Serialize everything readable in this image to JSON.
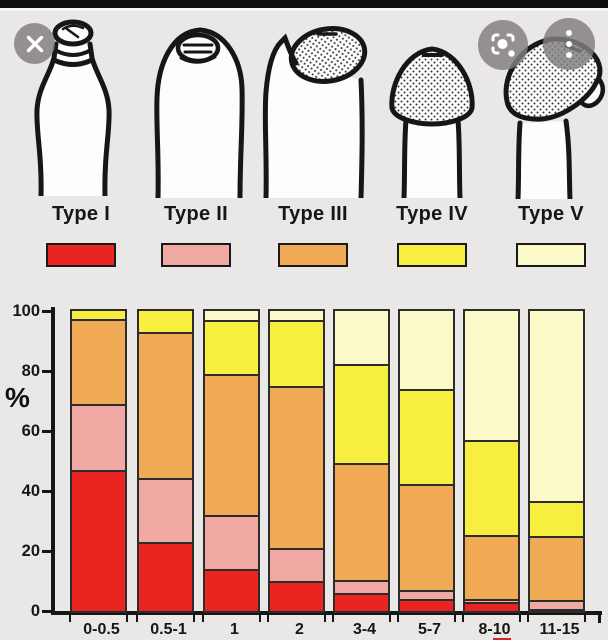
{
  "window": {
    "background_color": "#eae8e6",
    "top_bar_color": "#0d0d0d"
  },
  "overlay_controls": {
    "button_color": "rgba(130,126,126,0.83)",
    "close": {
      "icon": "close-icon"
    },
    "lens": {
      "icon": "camera-lens-icon"
    },
    "more": {
      "icon": "more-vertical-icon"
    }
  },
  "figure": {
    "types": [
      {
        "label": "Type I",
        "color": "#ea2420",
        "drawing": "pinhole-bottle-shape"
      },
      {
        "label": "Type II",
        "color": "#f0a9a2",
        "drawing": "slight-tip-exposure"
      },
      {
        "label": "Type III",
        "color": "#f0aa55",
        "drawing": "partial-glans-exposure"
      },
      {
        "label": "Type IV",
        "color": "#f8ee3f",
        "drawing": "glans-mostly-exposed"
      },
      {
        "label": "Type V",
        "color": "#fbf9c8",
        "drawing": "fully-retractable"
      }
    ]
  },
  "chart_data": {
    "type": "bar",
    "stacked": true,
    "title": "",
    "xlabel": "",
    "ylabel": "%",
    "ylim": [
      0,
      100
    ],
    "yticks": [
      0,
      20,
      40,
      60,
      80,
      100
    ],
    "grid": false,
    "legend_position": "top-swatches",
    "categories": [
      "0-0.5",
      "0.5-1",
      "1",
      "2",
      "3-4",
      "5-7",
      "8-10",
      "11-15"
    ],
    "series": [
      {
        "name": "Type I",
        "color": "#ea2420",
        "values": [
          47,
          23,
          14,
          10,
          6,
          4,
          3,
          0.5
        ]
      },
      {
        "name": "Type II",
        "color": "#f0a9a2",
        "values": [
          22,
          21.5,
          18,
          11,
          4.5,
          3,
          1,
          3
        ]
      },
      {
        "name": "Type III",
        "color": "#f0aa55",
        "values": [
          28.5,
          48.5,
          47,
          54,
          39,
          35.5,
          21.5,
          21.5
        ]
      },
      {
        "name": "Type IV",
        "color": "#f8ee3f",
        "values": [
          2.5,
          7,
          18,
          22,
          33,
          31.5,
          31.5,
          11.5
        ]
      },
      {
        "name": "Type V",
        "color": "#fbf9c8",
        "values": [
          0,
          0,
          3,
          3,
          17.5,
          26,
          43,
          63.5
        ]
      }
    ],
    "xlabel_accent": {
      "category": "8-10",
      "substring": "10",
      "color": "#cc2a22"
    }
  }
}
